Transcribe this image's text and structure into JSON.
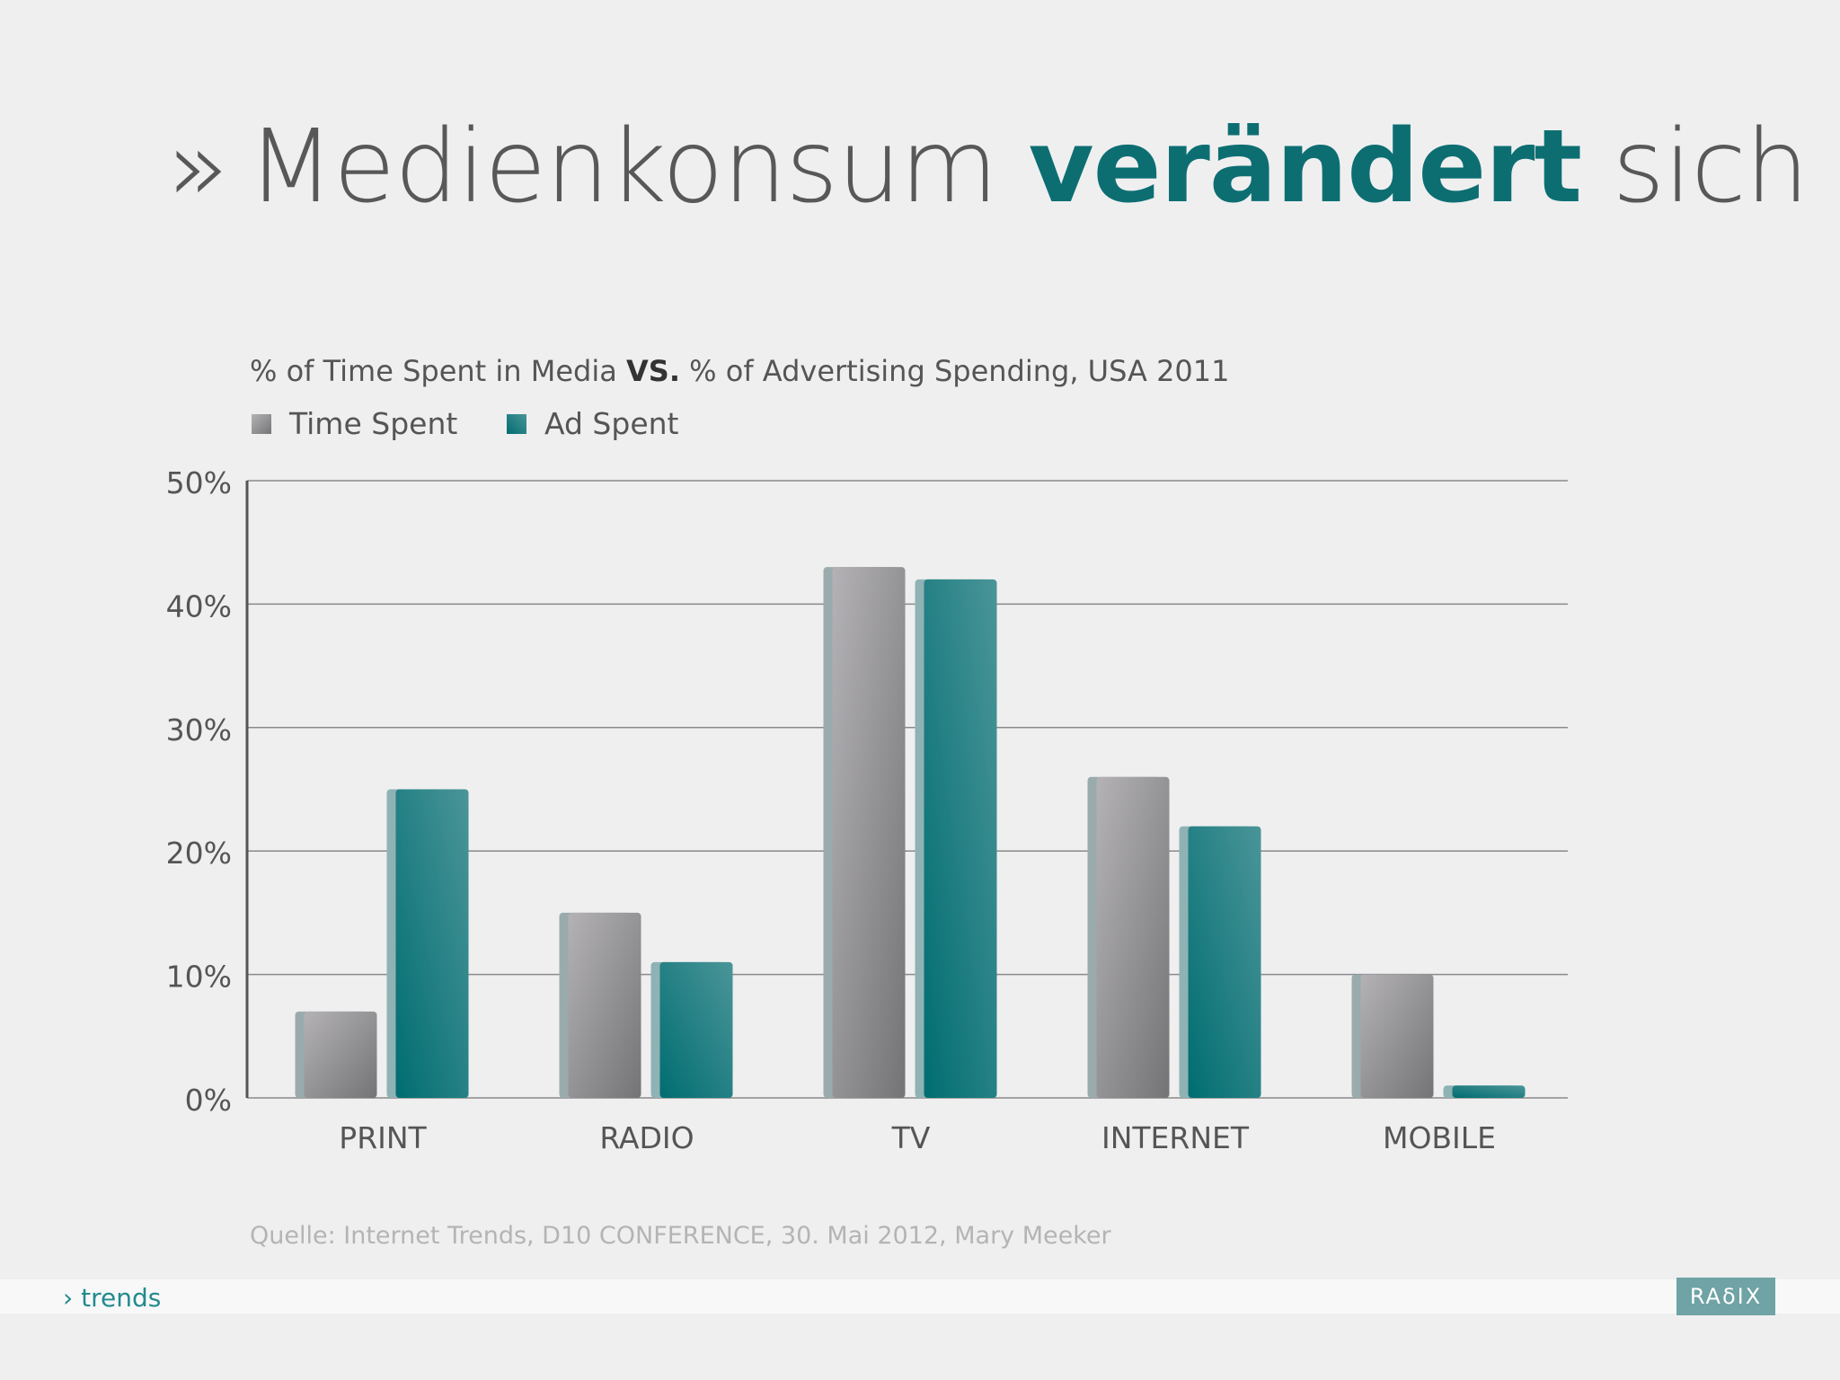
{
  "slide": {
    "chevron": "»",
    "title_part1": "Medienkonsum",
    "title_emph": "verändert",
    "title_part2": "sich",
    "subtitle_part1": "% of Time Spent in Media",
    "subtitle_vs": "VS.",
    "subtitle_part2": "% of Advertising Spending, USA 2011",
    "source": "Quelle: Internet Trends, D10 CONFERENCE, 30. Mai 2012, Mary Meeker",
    "footer_label": "› trends",
    "logo_text": "RAδIX"
  },
  "colors": {
    "time_spent": "#8f8f92",
    "ad_spent": "#0d7377",
    "title_accent": "#0d6e72"
  },
  "chart_data": {
    "type": "bar",
    "categories": [
      "PRINT",
      "RADIO",
      "TV",
      "INTERNET",
      "MOBILE"
    ],
    "series": [
      {
        "name": "Time Spent",
        "values": [
          7,
          15,
          43,
          26,
          10
        ]
      },
      {
        "name": "Ad Spent",
        "values": [
          25,
          11,
          42,
          22,
          1
        ]
      }
    ],
    "ylim": [
      0,
      50
    ],
    "yticks": [
      0,
      10,
      20,
      30,
      40,
      50
    ],
    "ytick_labels": [
      "0%",
      "10%",
      "20%",
      "30%",
      "40%",
      "50%"
    ],
    "grid": true,
    "legend_position": "top-left"
  }
}
